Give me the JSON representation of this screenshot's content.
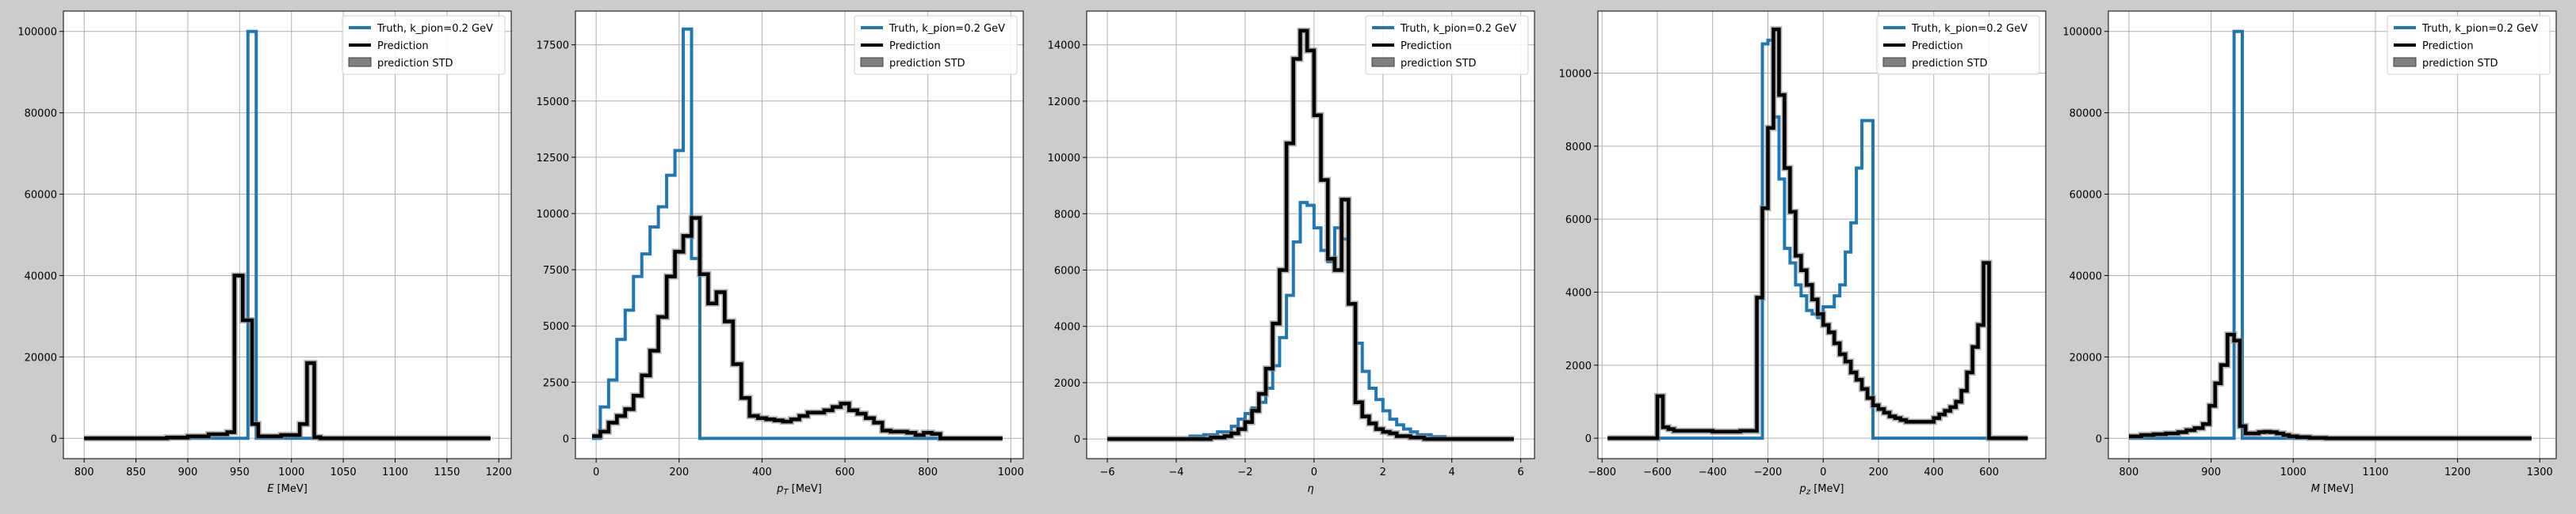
{
  "colors": {
    "truth": "#1f77b4",
    "prediction": "#000000",
    "std": "#808080",
    "background": "#cccccc",
    "axes": "#ffffff",
    "grid": "#b0b0b0"
  },
  "chart_data": [
    {
      "type": "line",
      "xlabel_base": "E",
      "xlabel_unit": "[MeV]",
      "xlim": [
        780,
        1212
      ],
      "ylim": [
        -5000,
        105000
      ],
      "xticks": [
        800,
        850,
        900,
        950,
        1000,
        1050,
        1100,
        1150,
        1200
      ],
      "yticks": [
        0,
        20000,
        40000,
        60000,
        80000,
        100000
      ],
      "grid": true,
      "legend": "top-right",
      "legend_entries": [
        "Truth, k_pion=0.2 GeV",
        "Prediction",
        "prediction STD"
      ],
      "series": [
        {
          "name": "Truth, k_pion=0.2 GeV",
          "step": true,
          "x": [
            800,
            958,
            966,
            1192
          ],
          "y": [
            0,
            100000,
            0,
            0
          ]
        },
        {
          "name": "Prediction",
          "step": true,
          "x": [
            800,
            880,
            900,
            920,
            938,
            945,
            953,
            962,
            968,
            975,
            990,
            1008,
            1015,
            1022,
            1028,
            1192
          ],
          "y": [
            0,
            200,
            500,
            1000,
            1500,
            40000,
            29000,
            3500,
            500,
            500,
            800,
            3500,
            18500,
            300,
            0,
            0
          ]
        }
      ]
    },
    {
      "type": "line",
      "xlabel_base": "p",
      "xlabel_sub": "T",
      "xlabel_unit": "[MeV]",
      "xlim": [
        -50,
        1030
      ],
      "ylim": [
        -900,
        19000
      ],
      "xticks": [
        0,
        200,
        400,
        600,
        800,
        1000
      ],
      "yticks": [
        0,
        2500,
        5000,
        7500,
        10000,
        12500,
        15000,
        17500
      ],
      "grid": true,
      "legend": "top-right",
      "legend_entries": [
        "Truth, k_pion=0.2 GeV",
        "Prediction",
        "prediction STD"
      ],
      "series": [
        {
          "name": "Truth, k_pion=0.2 GeV",
          "step": true,
          "x": [
            -10,
            10,
            30,
            50,
            70,
            90,
            110,
            130,
            150,
            170,
            190,
            210,
            230,
            250,
            270,
            980
          ],
          "y": [
            0,
            1400,
            2600,
            4400,
            5700,
            7200,
            8200,
            9400,
            10300,
            11700,
            12800,
            18200,
            8000,
            0,
            0,
            0
          ]
        },
        {
          "name": "Prediction",
          "step": true,
          "x": [
            -10,
            10,
            30,
            50,
            70,
            90,
            110,
            130,
            150,
            170,
            190,
            210,
            230,
            250,
            270,
            290,
            310,
            330,
            350,
            370,
            390,
            410,
            430,
            450,
            470,
            490,
            510,
            530,
            550,
            570,
            590,
            610,
            630,
            650,
            670,
            690,
            710,
            730,
            750,
            770,
            790,
            810,
            830,
            850,
            980
          ],
          "y": [
            100,
            300,
            700,
            1000,
            1300,
            1900,
            2800,
            3900,
            5400,
            7200,
            8300,
            9000,
            9800,
            7300,
            6000,
            6500,
            5200,
            3300,
            1800,
            1000,
            900,
            850,
            800,
            750,
            850,
            1000,
            1150,
            1150,
            1250,
            1400,
            1550,
            1250,
            1100,
            900,
            700,
            350,
            300,
            300,
            250,
            150,
            250,
            200,
            0,
            0,
            0
          ]
        }
      ]
    },
    {
      "type": "line",
      "xlabel_base": "η",
      "xlabel_unit": "",
      "xlim": [
        -6.6,
        6.4
      ],
      "ylim": [
        -700,
        15200
      ],
      "xticks": [
        -6,
        -4,
        -2,
        0,
        2,
        4,
        6
      ],
      "yticks": [
        0,
        2000,
        4000,
        6000,
        8000,
        10000,
        12000,
        14000
      ],
      "grid": true,
      "legend": "top-right",
      "legend_entries": [
        "Truth, k_pion=0.2 GeV",
        "Prediction",
        "prediction STD"
      ],
      "series": [
        {
          "name": "Truth, k_pion=0.2 GeV",
          "step": true,
          "x": [
            -6.0,
            -3.6,
            -3.2,
            -2.8,
            -2.4,
            -2.2,
            -2.0,
            -1.8,
            -1.6,
            -1.4,
            -1.2,
            -1.0,
            -0.8,
            -0.6,
            -0.4,
            -0.2,
            0.0,
            0.2,
            0.4,
            0.6,
            0.8,
            1.0,
            1.2,
            1.4,
            1.6,
            1.8,
            2.0,
            2.2,
            2.4,
            2.6,
            2.8,
            3.0,
            3.4,
            3.8,
            5.8
          ],
          "y": [
            0,
            100,
            150,
            250,
            450,
            700,
            900,
            1100,
            1300,
            1800,
            2600,
            3600,
            5100,
            7000,
            8400,
            8300,
            7500,
            6700,
            6300,
            7500,
            7100,
            4800,
            3400,
            2400,
            1800,
            1400,
            1000,
            700,
            500,
            350,
            250,
            150,
            80,
            0,
            0
          ]
        },
        {
          "name": "Prediction",
          "step": true,
          "x": [
            -6.0,
            -3.0,
            -2.6,
            -2.4,
            -2.2,
            -2.0,
            -1.8,
            -1.6,
            -1.4,
            -1.2,
            -1.0,
            -0.8,
            -0.6,
            -0.4,
            -0.2,
            0.0,
            0.2,
            0.4,
            0.6,
            0.8,
            1.0,
            1.2,
            1.4,
            1.6,
            1.8,
            2.0,
            2.2,
            2.4,
            2.8,
            3.2,
            5.8
          ],
          "y": [
            0,
            50,
            100,
            200,
            350,
            600,
            1000,
            1600,
            2500,
            4100,
            6000,
            10500,
            13500,
            14500,
            13800,
            11500,
            9200,
            6400,
            6000,
            8500,
            4800,
            1300,
            800,
            550,
            350,
            250,
            200,
            100,
            50,
            0,
            0
          ]
        }
      ]
    },
    {
      "type": "line",
      "xlabel_base": "p",
      "xlabel_sub": "z",
      "xlabel_unit": "[MeV]",
      "xlim": [
        -815,
        805
      ],
      "ylim": [
        -560,
        11700
      ],
      "xticks": [
        -800,
        -600,
        -400,
        -200,
        0,
        200,
        400,
        600
      ],
      "yticks": [
        0,
        2000,
        4000,
        6000,
        8000,
        10000
      ],
      "grid": true,
      "legend": "top-right",
      "legend_entries": [
        "Truth, k_pion=0.2 GeV",
        "Prediction",
        "prediction STD"
      ],
      "series": [
        {
          "name": "Truth, k_pion=0.2 GeV",
          "step": true,
          "x": [
            -780,
            -240,
            -220,
            -200,
            -180,
            -160,
            -140,
            -120,
            -100,
            -80,
            -60,
            -40,
            -20,
            0,
            20,
            40,
            60,
            80,
            100,
            120,
            140,
            160,
            180,
            200,
            220,
            240,
            740
          ],
          "y": [
            0,
            0,
            10800,
            10900,
            8800,
            7100,
            5200,
            4800,
            4200,
            3900,
            3500,
            3400,
            3300,
            3600,
            3600,
            3900,
            4200,
            5100,
            5900,
            7400,
            8700,
            8700,
            0,
            0,
            0,
            0,
            0
          ]
        },
        {
          "name": "Prediction",
          "step": true,
          "x": [
            -780,
            -620,
            -600,
            -580,
            -560,
            -540,
            -520,
            -500,
            -480,
            -460,
            -440,
            -420,
            -400,
            -380,
            -360,
            -340,
            -320,
            -300,
            -280,
            -260,
            -240,
            -220,
            -200,
            -180,
            -160,
            -140,
            -120,
            -100,
            -80,
            -60,
            -40,
            -20,
            0,
            20,
            40,
            60,
            80,
            100,
            120,
            140,
            160,
            180,
            200,
            220,
            240,
            260,
            280,
            300,
            320,
            340,
            360,
            380,
            400,
            420,
            440,
            460,
            480,
            500,
            520,
            540,
            560,
            580,
            600,
            620,
            740
          ],
          "y": [
            0,
            0,
            1150,
            300,
            250,
            200,
            200,
            200,
            200,
            200,
            200,
            200,
            180,
            180,
            180,
            180,
            180,
            200,
            200,
            200,
            3850,
            6300,
            8500,
            11200,
            9400,
            7400,
            6200,
            5000,
            4600,
            4200,
            3800,
            3400,
            3100,
            2900,
            2600,
            2300,
            2100,
            1800,
            1600,
            1350,
            1100,
            900,
            800,
            700,
            600,
            550,
            500,
            450,
            450,
            450,
            450,
            450,
            550,
            650,
            750,
            850,
            1000,
            1300,
            1800,
            2500,
            3100,
            4800,
            0,
            0,
            0
          ]
        }
      ]
    },
    {
      "type": "line",
      "xlabel_base": "M",
      "xlabel_unit": "[MeV]",
      "xlim": [
        775,
        1320
      ],
      "ylim": [
        -5000,
        105000
      ],
      "xticks": [
        800,
        900,
        1000,
        1100,
        1200,
        1300
      ],
      "yticks": [
        0,
        20000,
        40000,
        60000,
        80000,
        100000
      ],
      "grid": true,
      "legend": "top-right",
      "legend_entries": [
        "Truth, k_pion=0.2 GeV",
        "Prediction",
        "prediction STD"
      ],
      "series": [
        {
          "name": "Truth, k_pion=0.2 GeV",
          "step": true,
          "x": [
            800,
            928,
            938,
            1290
          ],
          "y": [
            0,
            100000,
            0,
            0
          ]
        },
        {
          "name": "Prediction",
          "step": true,
          "x": [
            800,
            815,
            830,
            845,
            860,
            870,
            880,
            890,
            898,
            905,
            912,
            920,
            928,
            935,
            942,
            950,
            958,
            965,
            972,
            980,
            988,
            995,
            1005,
            1020,
            1040,
            1290
          ],
          "y": [
            500,
            800,
            1000,
            1200,
            1500,
            2000,
            2500,
            3500,
            8000,
            13500,
            18000,
            25500,
            24000,
            3000,
            1200,
            1200,
            1500,
            1600,
            1500,
            1200,
            800,
            500,
            300,
            100,
            0,
            0
          ]
        }
      ]
    }
  ]
}
